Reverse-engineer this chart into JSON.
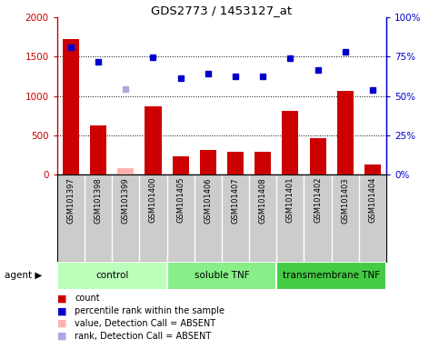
{
  "title": "GDS2773 / 1453127_at",
  "samples": [
    "GSM101397",
    "GSM101398",
    "GSM101399",
    "GSM101400",
    "GSM101405",
    "GSM101406",
    "GSM101407",
    "GSM101408",
    "GSM101401",
    "GSM101402",
    "GSM101403",
    "GSM101404"
  ],
  "bar_values": [
    1720,
    620,
    0,
    870,
    230,
    310,
    285,
    295,
    810,
    460,
    1070,
    130
  ],
  "bar_absent": [
    0,
    0,
    80,
    0,
    0,
    0,
    0,
    0,
    0,
    0,
    0,
    0
  ],
  "dot_values": [
    1620,
    1430,
    0,
    1490,
    1230,
    1290,
    1250,
    1250,
    1480,
    1330,
    1560,
    1080
  ],
  "dot_absent": [
    0,
    0,
    1090,
    0,
    0,
    0,
    0,
    0,
    0,
    0,
    0,
    0
  ],
  "ylim_left": [
    0,
    2000
  ],
  "ylim_right": [
    0,
    100
  ],
  "yticks_left": [
    0,
    500,
    1000,
    1500,
    2000
  ],
  "yticks_right": [
    0,
    25,
    50,
    75,
    100
  ],
  "yticklabels_left": [
    "0",
    "500",
    "1000",
    "1500",
    "2000"
  ],
  "yticklabels_right": [
    "0%",
    "25%",
    "50%",
    "75%",
    "100%"
  ],
  "grid_lines": [
    500,
    1000,
    1500
  ],
  "bar_color": "#CC0000",
  "bar_absent_color": "#FFB0B0",
  "dot_color": "#0000CC",
  "dot_absent_color": "#AAAADD",
  "groups": [
    {
      "label": "control",
      "start": 0,
      "end": 4,
      "color": "#BBFFBB"
    },
    {
      "label": "soluble TNF",
      "start": 4,
      "end": 8,
      "color": "#88EE88"
    },
    {
      "label": "transmembrane TNF",
      "start": 8,
      "end": 12,
      "color": "#44CC44"
    }
  ],
  "legend_items": [
    {
      "label": "count",
      "color": "#CC0000"
    },
    {
      "label": "percentile rank within the sample",
      "color": "#0000CC"
    },
    {
      "label": "value, Detection Call = ABSENT",
      "color": "#FFB0B0"
    },
    {
      "label": "rank, Detection Call = ABSENT",
      "color": "#AAAADD"
    }
  ],
  "agent_label": "agent ▶",
  "left_label_color": "#CC0000",
  "right_label_color": "#0000CC",
  "sample_bg_color": "#CCCCCC",
  "plot_area_color": "#FFFFFF",
  "fig_width": 4.83,
  "fig_height": 3.84,
  "dpi": 100
}
